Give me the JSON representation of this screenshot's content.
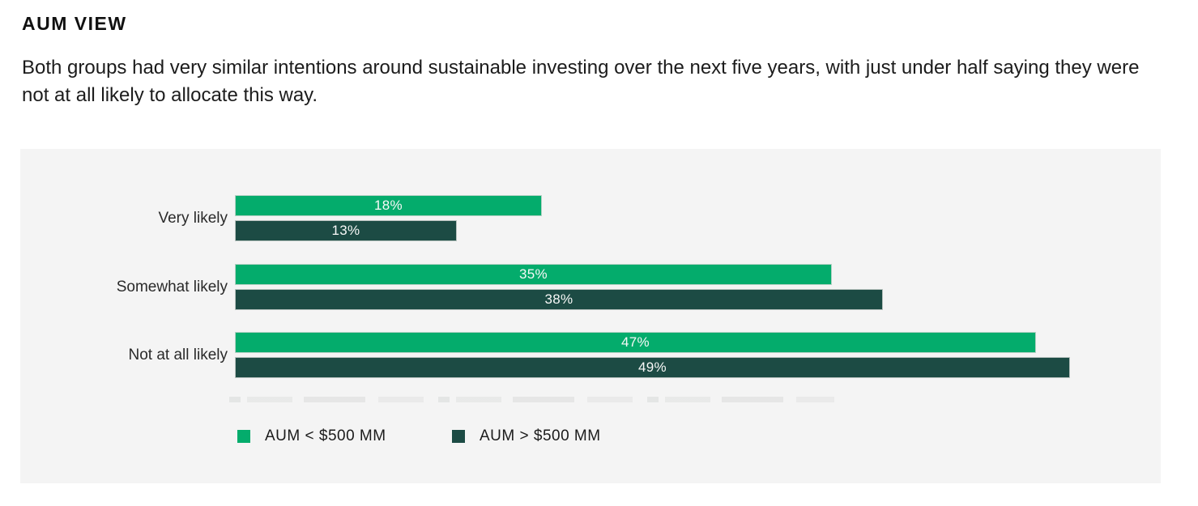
{
  "page": {
    "title": "AUM VIEW",
    "subtitle": "Both groups had very similar intentions around sustainable investing over the next five years, with just under half saying they were not at all likely to allocate this way."
  },
  "chart_data": {
    "type": "bar",
    "orientation": "horizontal",
    "title": "AUM VIEW",
    "categories": [
      "Very likely",
      "Somewhat likely",
      "Not at all likely"
    ],
    "series": [
      {
        "name": "AUM < $500 MM",
        "color": "#04AC6C",
        "values": [
          18,
          35,
          47
        ]
      },
      {
        "name": "AUM > $500 MM",
        "color": "#1C4B44",
        "values": [
          13,
          38,
          49
        ]
      }
    ],
    "value_suffix": "%",
    "value_label_color": "#F7F8F7",
    "xlim": [
      0,
      54
    ],
    "grid": false,
    "legend_position": "bottom",
    "panel_background": "#F4F4F4"
  }
}
